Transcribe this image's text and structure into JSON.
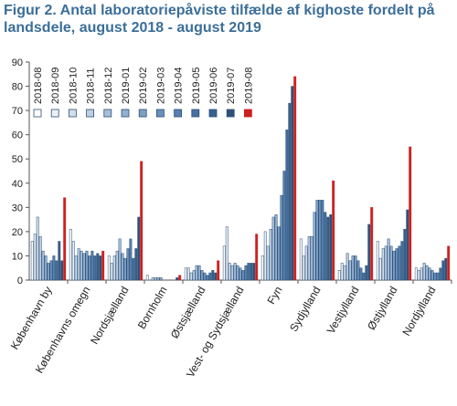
{
  "title": "Figur 2. Antal laboratoriepåviste tilfælde af kighoste fordelt på landsdele, august 2018 - august 2019",
  "chart_data": {
    "type": "bar",
    "ylim": [
      0,
      90
    ],
    "yticks": [
      0,
      10,
      20,
      30,
      40,
      50,
      60,
      70,
      80,
      90
    ],
    "legend_position": "top-left",
    "months": [
      "2018-08",
      "2018-09",
      "2018-10",
      "2018-11",
      "2018-12",
      "2019-01",
      "2019-02",
      "2019-03",
      "2019-04",
      "2019-05",
      "2019-06",
      "2019-07",
      "2019-08"
    ],
    "colors": [
      "#ffffff",
      "#eaf0f8",
      "#d2deed",
      "#bdcfe4",
      "#a7bfdb",
      "#93b0d2",
      "#7e9fc6",
      "#6a8fbb",
      "#577fb0",
      "#4670a2",
      "#37618f",
      "#2c527a",
      "#cc1f1f"
    ],
    "categories": [
      "København by",
      "Københavns omegn",
      "Nordsjælland",
      "Bornholm",
      "Østsjælland",
      "Vest- og Sydsjælland",
      "Fyn",
      "Sydjylland",
      "Vestjylland",
      "Østjylland",
      "Nordjylland"
    ],
    "values": [
      [
        16,
        19,
        26,
        18,
        12,
        10,
        7,
        8,
        10,
        8,
        16,
        8,
        34
      ],
      [
        21,
        16,
        10,
        13,
        12,
        11,
        12,
        10,
        12,
        10,
        11,
        10,
        12
      ],
      [
        10,
        7,
        10,
        12,
        17,
        11,
        9,
        13,
        17,
        9,
        13,
        26,
        49
      ],
      [
        2,
        0,
        1,
        1,
        1,
        1,
        0,
        0,
        0,
        0,
        0,
        1,
        2
      ],
      [
        5,
        5,
        3,
        4,
        6,
        6,
        4,
        3,
        2,
        3,
        4,
        3,
        8
      ],
      [
        14,
        22,
        7,
        6,
        7,
        6,
        5,
        4,
        6,
        7,
        7,
        7,
        19
      ],
      [
        10,
        20,
        14,
        21,
        26,
        27,
        22,
        35,
        45,
        62,
        73,
        80,
        84
      ],
      [
        17,
        10,
        14,
        18,
        18,
        28,
        33,
        33,
        33,
        28,
        26,
        27,
        41
      ],
      [
        4,
        7,
        6,
        11,
        8,
        10,
        10,
        8,
        5,
        3,
        6,
        23,
        30
      ],
      [
        16,
        9,
        13,
        14,
        17,
        14,
        12,
        13,
        14,
        16,
        21,
        29,
        55
      ],
      [
        5,
        4,
        5,
        7,
        6,
        5,
        4,
        3,
        3,
        5,
        8,
        9,
        14
      ]
    ]
  }
}
